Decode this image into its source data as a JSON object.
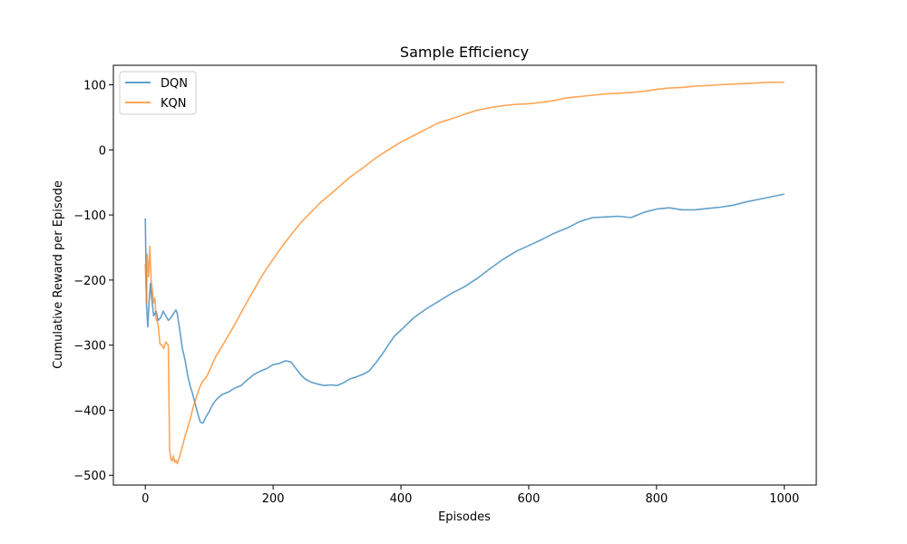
{
  "chart_data": {
    "type": "line",
    "title": "Sample Efficiency",
    "xlabel": "Episodes",
    "ylabel": "Cumulative Reward per Episode",
    "xlim": [
      -50,
      1050
    ],
    "ylim": [
      -515,
      130
    ],
    "xticks": [
      0,
      200,
      400,
      600,
      800,
      1000
    ],
    "yticks": [
      -500,
      -400,
      -300,
      -200,
      -100,
      0,
      100
    ],
    "grid": false,
    "legend_position": "top-left",
    "series": [
      {
        "name": "DQN",
        "color": "#1f77b4",
        "x": [
          0,
          2,
          4,
          6,
          8,
          10,
          13,
          17,
          20,
          24,
          28,
          32,
          36,
          40,
          45,
          48,
          50,
          54,
          58,
          62,
          66,
          70,
          74,
          78,
          82,
          86,
          90,
          95,
          100,
          105,
          110,
          115,
          120,
          130,
          140,
          150,
          160,
          170,
          180,
          190,
          200,
          210,
          220,
          228,
          235,
          243,
          250,
          260,
          270,
          280,
          290,
          300,
          310,
          320,
          330,
          340,
          350,
          360,
          370,
          380,
          390,
          400,
          420,
          440,
          460,
          480,
          500,
          520,
          540,
          560,
          580,
          600,
          620,
          640,
          660,
          680,
          700,
          720,
          740,
          760,
          780,
          800,
          820,
          840,
          860,
          880,
          900,
          920,
          940,
          960,
          980,
          1000
        ],
        "y": [
          -105,
          -240,
          -272,
          -230,
          -205,
          -228,
          -255,
          -248,
          -262,
          -258,
          -248,
          -255,
          -262,
          -258,
          -250,
          -246,
          -252,
          -278,
          -305,
          -322,
          -345,
          -362,
          -375,
          -390,
          -405,
          -418,
          -420,
          -410,
          -402,
          -392,
          -385,
          -380,
          -376,
          -372,
          -366,
          -362,
          -353,
          -345,
          -340,
          -336,
          -330,
          -328,
          -324,
          -326,
          -335,
          -345,
          -352,
          -357,
          -360,
          -362,
          -361,
          -362,
          -358,
          -352,
          -349,
          -345,
          -340,
          -328,
          -315,
          -300,
          -286,
          -277,
          -258,
          -244,
          -232,
          -220,
          -210,
          -197,
          -182,
          -168,
          -156,
          -147,
          -138,
          -128,
          -120,
          -110,
          -104,
          -103,
          -102,
          -104,
          -96,
          -91,
          -89,
          -92,
          -92,
          -90,
          -88,
          -85,
          -80,
          -76,
          -72,
          -68
        ]
      },
      {
        "name": "KQN",
        "color": "#ff7f0e",
        "x": [
          0,
          2,
          3,
          5,
          7,
          9,
          11,
          13,
          15,
          17,
          20,
          23,
          26,
          29,
          32,
          34,
          36,
          38,
          40,
          42,
          44,
          46,
          48,
          50,
          54,
          58,
          62,
          66,
          70,
          75,
          80,
          85,
          90,
          95,
          100,
          110,
          120,
          130,
          140,
          150,
          160,
          170,
          180,
          190,
          200,
          215,
          230,
          245,
          260,
          275,
          290,
          305,
          320,
          340,
          360,
          380,
          400,
          420,
          440,
          460,
          480,
          500,
          520,
          540,
          560,
          580,
          600,
          620,
          640,
          660,
          680,
          700,
          720,
          740,
          760,
          780,
          800,
          820,
          840,
          860,
          880,
          900,
          920,
          940,
          960,
          980,
          1000
        ],
        "y": [
          -175,
          -235,
          -160,
          -195,
          -148,
          -200,
          -215,
          -235,
          -228,
          -260,
          -268,
          -298,
          -300,
          -305,
          -295,
          -298,
          -300,
          -460,
          -475,
          -478,
          -470,
          -480,
          -477,
          -482,
          -470,
          -456,
          -440,
          -428,
          -415,
          -395,
          -380,
          -365,
          -355,
          -350,
          -340,
          -318,
          -302,
          -285,
          -268,
          -250,
          -232,
          -215,
          -198,
          -182,
          -168,
          -147,
          -128,
          -110,
          -95,
          -80,
          -68,
          -55,
          -42,
          -28,
          -13,
          0,
          12,
          22,
          32,
          42,
          48,
          55,
          61,
          65,
          68,
          70,
          71,
          73,
          76,
          80,
          82,
          84,
          86,
          87,
          88,
          90,
          93,
          95,
          96,
          98,
          99,
          100,
          101,
          102,
          103,
          104,
          104
        ]
      }
    ]
  }
}
